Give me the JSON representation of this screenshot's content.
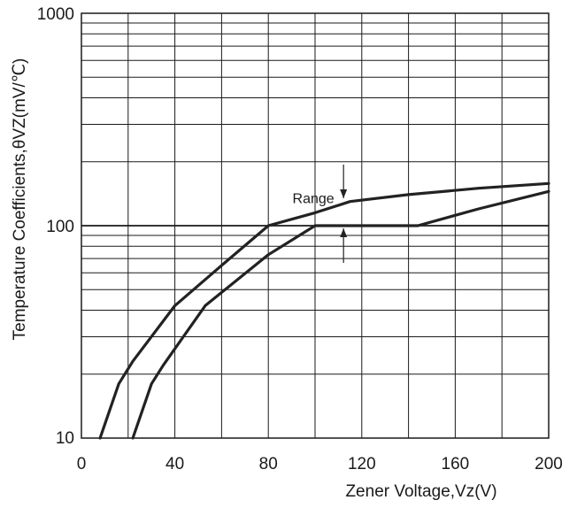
{
  "chart_data": {
    "type": "line",
    "title": "",
    "xlabel": "Zener Voltage,Vz(V)",
    "ylabel": "Temperature Coefficients,θVZ(mV/℃)",
    "xlim": [
      0,
      200
    ],
    "ylim": [
      10,
      1000
    ],
    "yscale": "log",
    "grid": true,
    "x_ticks": [
      0,
      40,
      80,
      120,
      160,
      200
    ],
    "x_tick_labels": [
      "0",
      "40",
      "80",
      "120",
      "160",
      "200"
    ],
    "y_ticks": [
      10,
      100,
      1000
    ],
    "y_tick_labels": [
      "10",
      "100",
      "1000"
    ],
    "series": [
      {
        "points": [
          [
            8,
            10
          ],
          [
            16,
            18
          ],
          [
            22,
            23
          ],
          [
            40,
            42
          ],
          [
            60,
            65
          ],
          [
            80,
            100
          ],
          [
            100,
            115
          ],
          [
            115,
            130
          ],
          [
            140,
            140
          ],
          [
            170,
            150
          ],
          [
            200,
            158
          ]
        ]
      },
      {
        "points": [
          [
            22,
            10
          ],
          [
            30,
            18
          ],
          [
            35,
            22
          ],
          [
            53,
            42
          ],
          [
            80,
            73
          ],
          [
            100,
            100
          ],
          [
            120,
            100
          ],
          [
            144,
            100
          ],
          [
            170,
            120
          ],
          [
            200,
            145
          ]
        ]
      }
    ],
    "annotations": [
      {
        "text": "Range",
        "x": 112,
        "y": 170
      }
    ]
  }
}
